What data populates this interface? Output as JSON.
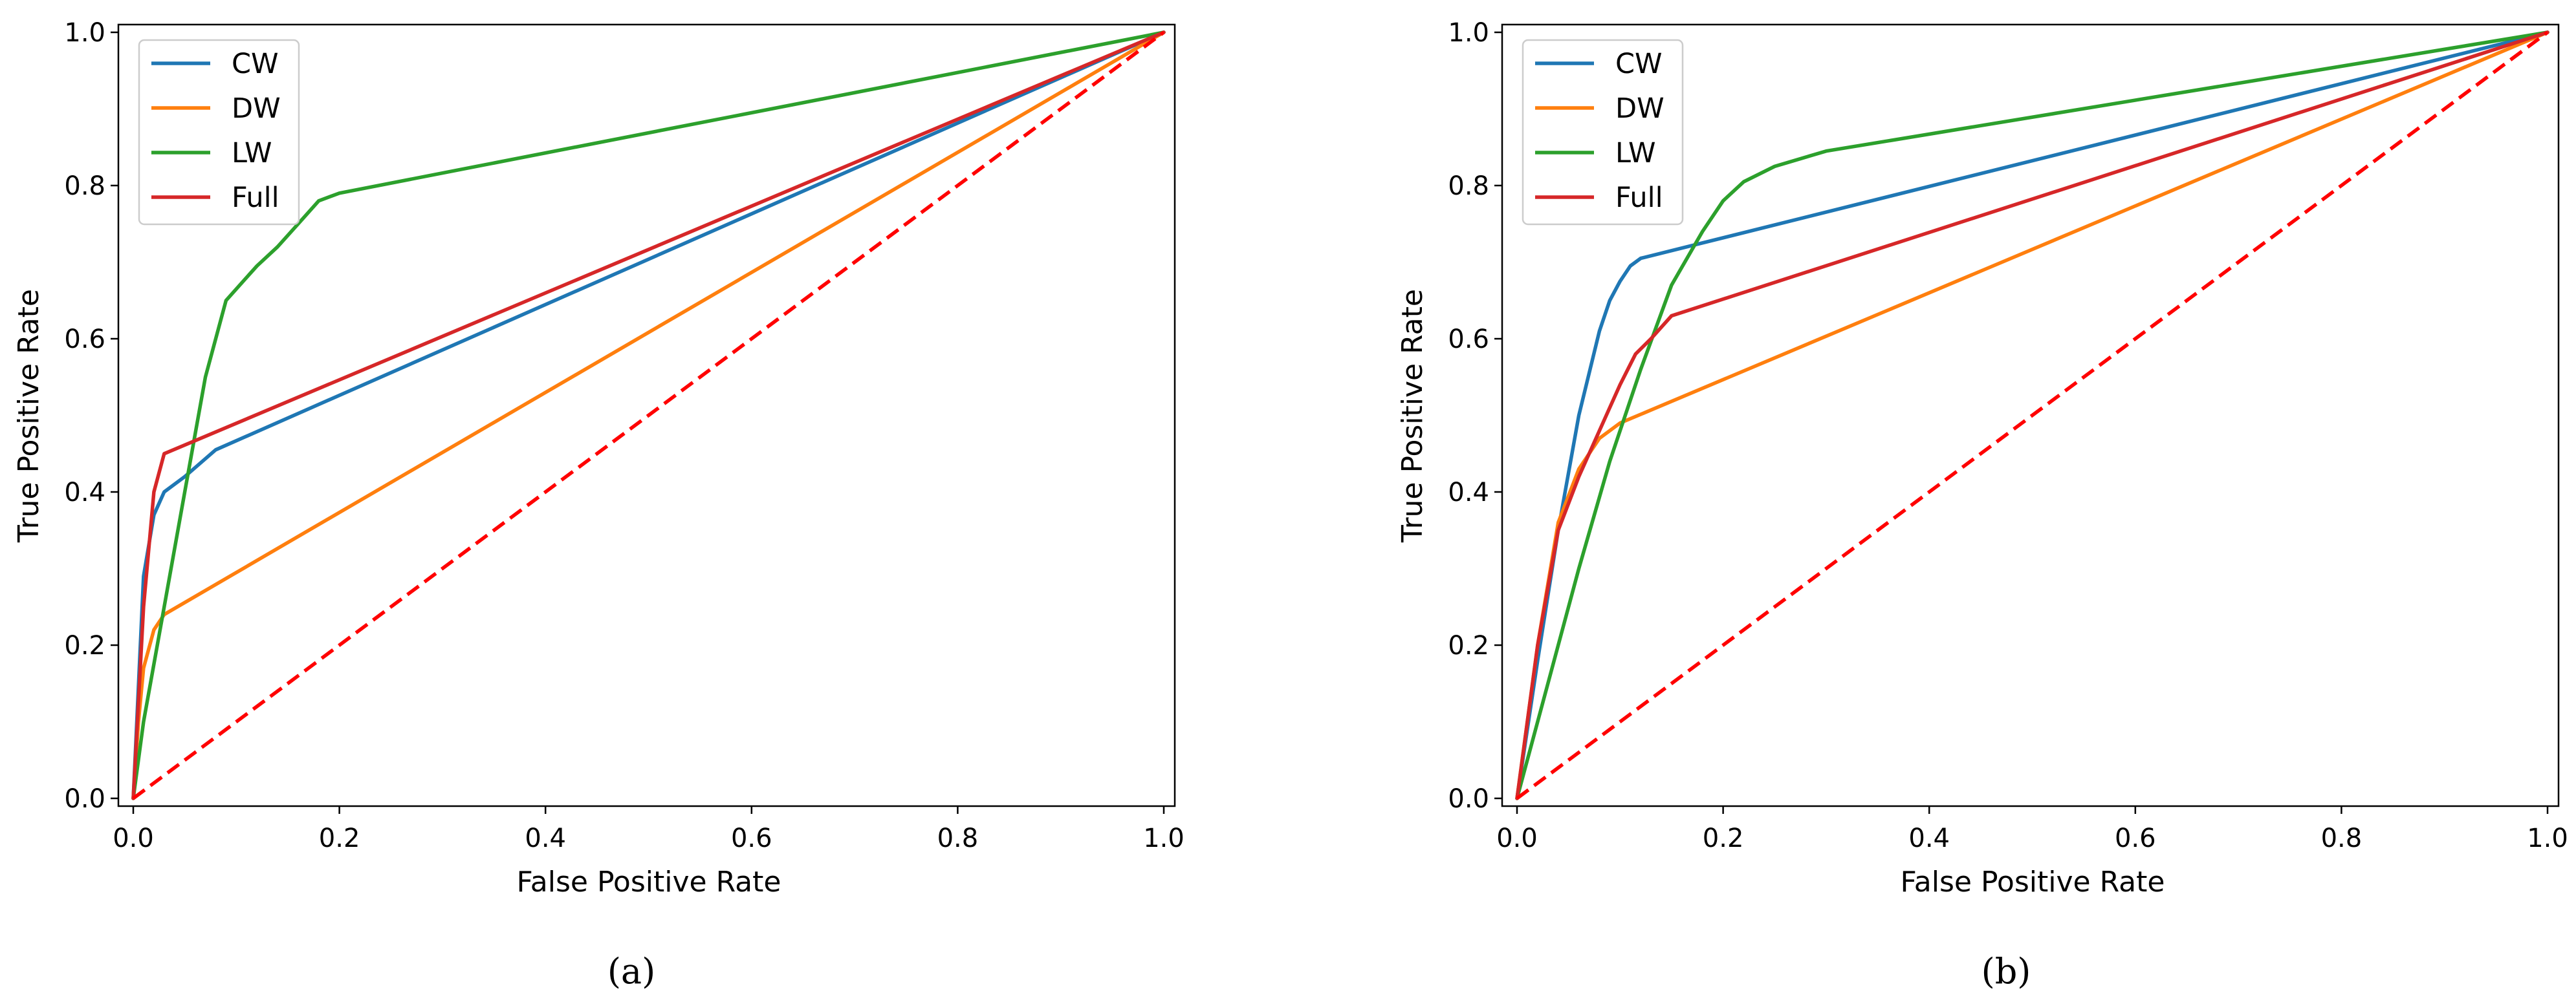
{
  "chart_data": [
    {
      "type": "line",
      "caption": "(a)",
      "xlabel": "False Positive Rate",
      "ylabel": "True Positive Rate",
      "xlim": [
        0.0,
        1.0
      ],
      "ylim": [
        0.0,
        1.0
      ],
      "xticks": [
        "0.0",
        "0.2",
        "0.4",
        "0.6",
        "0.8",
        "1.0"
      ],
      "yticks": [
        "0.0",
        "0.2",
        "0.4",
        "0.6",
        "0.8",
        "1.0"
      ],
      "legend_position": "top-left",
      "series": [
        {
          "name": "CW",
          "color": "#1f77b4",
          "dashed": false,
          "x": [
            0,
            0.01,
            0.02,
            0.03,
            0.05,
            0.08,
            1.0
          ],
          "y": [
            0,
            0.29,
            0.37,
            0.4,
            0.42,
            0.455,
            1.0
          ]
        },
        {
          "name": "DW",
          "color": "#ff7f0e",
          "dashed": false,
          "x": [
            0,
            0.005,
            0.01,
            0.02,
            0.03,
            1.0
          ],
          "y": [
            0,
            0.1,
            0.17,
            0.22,
            0.24,
            1.0
          ]
        },
        {
          "name": "LW",
          "color": "#2ca02c",
          "dashed": false,
          "x": [
            0,
            0.01,
            0.03,
            0.05,
            0.07,
            0.09,
            0.11,
            0.12,
            0.14,
            0.16,
            0.18,
            0.2,
            1.0
          ],
          "y": [
            0,
            0.1,
            0.25,
            0.4,
            0.55,
            0.65,
            0.68,
            0.695,
            0.72,
            0.75,
            0.78,
            0.79,
            1.0
          ]
        },
        {
          "name": "Full",
          "color": "#d62728",
          "dashed": false,
          "x": [
            0,
            0.01,
            0.02,
            0.03,
            1.0
          ],
          "y": [
            0,
            0.25,
            0.4,
            0.45,
            1.0
          ]
        },
        {
          "name": "",
          "color": "#ff0000",
          "dashed": true,
          "x": [
            0,
            1
          ],
          "y": [
            0,
            1
          ]
        }
      ]
    },
    {
      "type": "line",
      "caption": "(b)",
      "xlabel": "False Positive Rate",
      "ylabel": "True Positive Rate",
      "xlim": [
        0.0,
        1.0
      ],
      "ylim": [
        0.0,
        1.0
      ],
      "xticks": [
        "0.0",
        "0.2",
        "0.4",
        "0.6",
        "0.8",
        "1.0"
      ],
      "yticks": [
        "0.0",
        "0.2",
        "0.4",
        "0.6",
        "0.8",
        "1.0"
      ],
      "legend_position": "top-left",
      "series": [
        {
          "name": "CW",
          "color": "#1f77b4",
          "dashed": false,
          "x": [
            0,
            0.02,
            0.04,
            0.06,
            0.08,
            0.09,
            0.1,
            0.11,
            0.12,
            1.0
          ],
          "y": [
            0,
            0.18,
            0.35,
            0.5,
            0.61,
            0.65,
            0.675,
            0.695,
            0.705,
            1.0
          ]
        },
        {
          "name": "DW",
          "color": "#ff7f0e",
          "dashed": false,
          "x": [
            0,
            0.02,
            0.04,
            0.06,
            0.08,
            0.1,
            1.0
          ],
          "y": [
            0,
            0.2,
            0.36,
            0.43,
            0.47,
            0.49,
            1.0
          ]
        },
        {
          "name": "LW",
          "color": "#2ca02c",
          "dashed": false,
          "x": [
            0,
            0.03,
            0.06,
            0.09,
            0.12,
            0.15,
            0.18,
            0.2,
            0.22,
            0.25,
            0.3,
            1.0
          ],
          "y": [
            0,
            0.15,
            0.3,
            0.44,
            0.56,
            0.67,
            0.74,
            0.78,
            0.805,
            0.825,
            0.845,
            1.0
          ]
        },
        {
          "name": "Full",
          "color": "#d62728",
          "dashed": false,
          "x": [
            0,
            0.02,
            0.04,
            0.06,
            0.08,
            0.1,
            0.115,
            0.13,
            0.15,
            1.0
          ],
          "y": [
            0,
            0.2,
            0.35,
            0.42,
            0.48,
            0.54,
            0.58,
            0.6,
            0.63,
            1.0
          ]
        },
        {
          "name": "",
          "color": "#ff0000",
          "dashed": true,
          "x": [
            0,
            1
          ],
          "y": [
            0,
            1
          ]
        }
      ]
    }
  ]
}
